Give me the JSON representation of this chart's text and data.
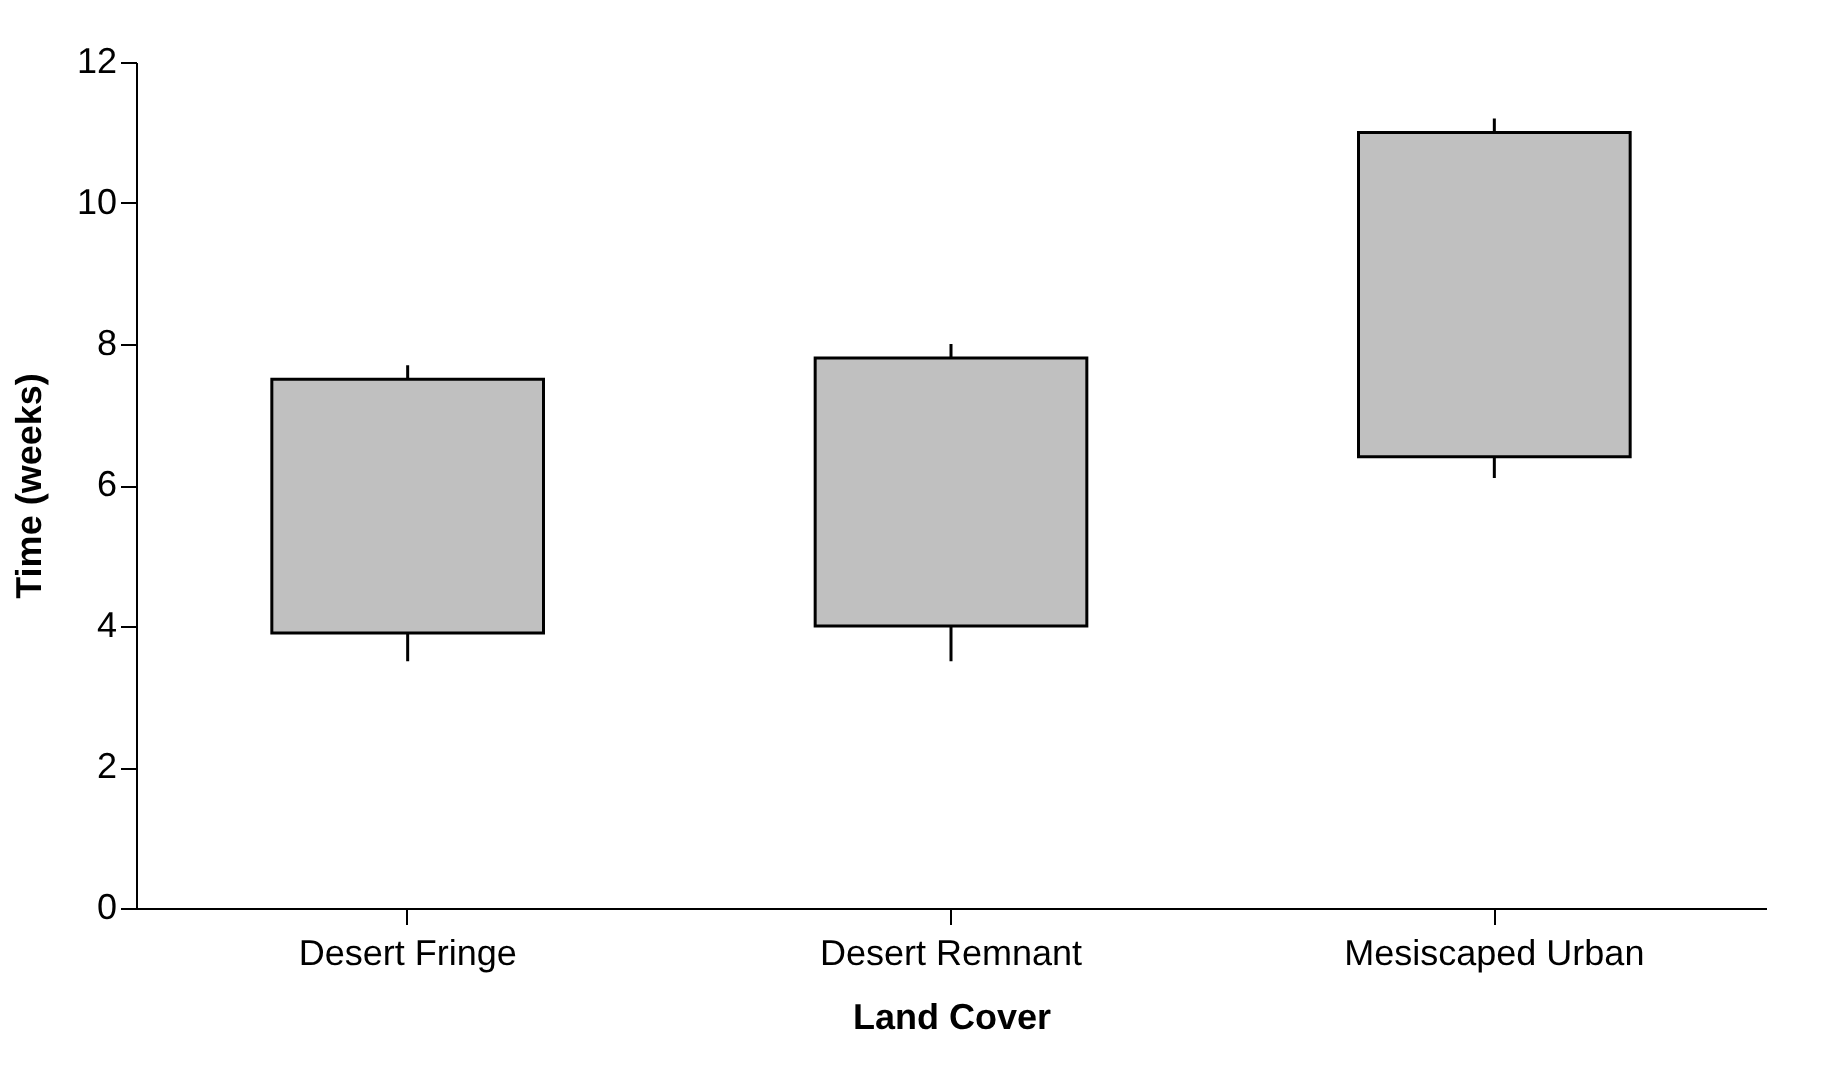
{
  "chart_data": {
    "type": "box",
    "xlabel": "Land Cover",
    "ylabel": "Time (weeks)",
    "categories": [
      "Desert Fringe",
      "Desert Remnant",
      "Mesiscaped Urban"
    ],
    "boxes": [
      {
        "low": 3.5,
        "q1": 3.9,
        "q3": 7.5,
        "high": 7.7
      },
      {
        "low": 3.5,
        "q1": 4.0,
        "q3": 7.8,
        "high": 8.0
      },
      {
        "low": 6.1,
        "q1": 6.4,
        "q3": 11.0,
        "high": 11.2
      }
    ],
    "color": "#c0c0c0",
    "ylim": [
      0,
      12
    ],
    "yticks": [
      0,
      2,
      4,
      6,
      8,
      10,
      12
    ],
    "grid": false
  }
}
